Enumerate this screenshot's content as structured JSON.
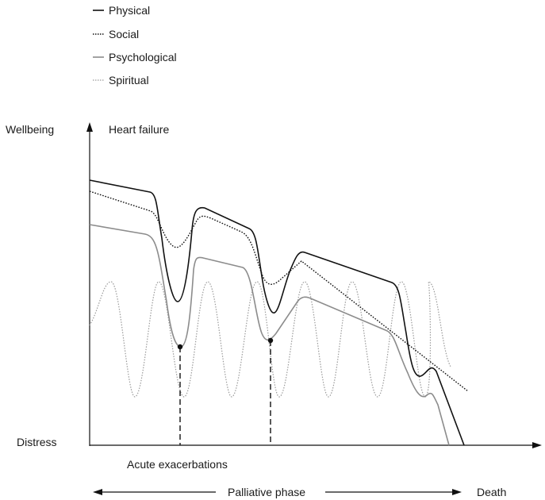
{
  "chart_data": {
    "type": "line",
    "title": "Heart failure",
    "ylabel_top": "Wellbeing",
    "ylabel_bottom": "Distress",
    "annotation": "Acute exacerbations",
    "phase_label": "Palliative phase",
    "end_label": "Death",
    "legend": [
      {
        "name": "Physical",
        "style": "solid",
        "color": "#111111"
      },
      {
        "name": "Social",
        "style": "dotted",
        "color": "#111111"
      },
      {
        "name": "Psychological",
        "style": "solid",
        "color": "#8c8c8c"
      },
      {
        "name": "Spiritual",
        "style": "dotted",
        "color": "#9a9a9a"
      }
    ]
  }
}
